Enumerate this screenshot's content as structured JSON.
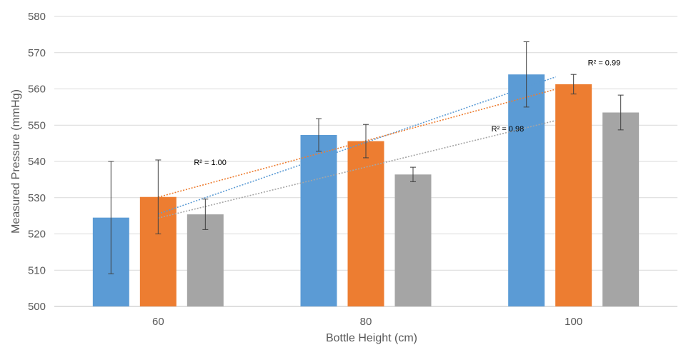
{
  "chart_data": {
    "type": "bar",
    "title": "",
    "xlabel": "Bottle Height (cm)",
    "ylabel": "Measured Pressure (mmHg)",
    "categories": [
      "60",
      "80",
      "100"
    ],
    "ylim": [
      500,
      580
    ],
    "yticks": [
      500,
      510,
      520,
      530,
      540,
      550,
      560,
      570,
      580
    ],
    "grid": true,
    "legend": "none",
    "series": [
      {
        "color": "#5b9bd5",
        "values": [
          524.5,
          547.3,
          564.0
        ],
        "errors": [
          15.5,
          4.5,
          9.0
        ]
      },
      {
        "color": "#ed7d31",
        "values": [
          530.2,
          545.6,
          561.3
        ],
        "errors": [
          10.2,
          4.6,
          2.7
        ]
      },
      {
        "color": "#a5a5a5",
        "values": [
          525.4,
          536.4,
          553.5
        ],
        "errors": [
          4.2,
          2.0,
          4.8
        ]
      }
    ],
    "trendlines": [
      {
        "series": 0,
        "type": "linear",
        "style": "dotted"
      },
      {
        "series": 1,
        "type": "linear",
        "style": "dotted"
      },
      {
        "series": 2,
        "type": "linear",
        "style": "dotted"
      }
    ],
    "annotations": [
      {
        "text": "R² = 1.00",
        "x_category": "60",
        "y": 539.0
      },
      {
        "text": "R² = 0.98",
        "x_category": "100",
        "y": 548.3
      },
      {
        "text": "R² = 0.99",
        "x_category": "100",
        "y": 566.5
      }
    ]
  }
}
